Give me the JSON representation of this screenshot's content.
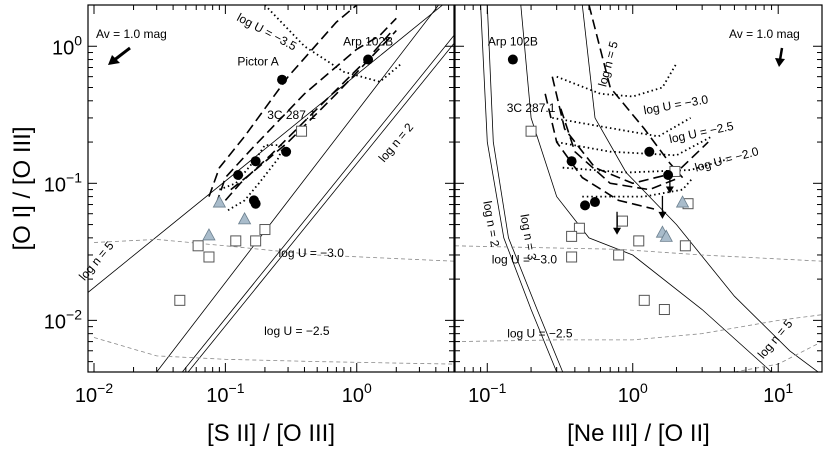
{
  "chart_data": [
    {
      "type": "scatter",
      "panel": "left",
      "xscale": "log",
      "yscale": "log",
      "xlim": [
        0.009,
        5.5
      ],
      "ylim": [
        0.0042,
        2.0
      ],
      "xlabel": "[S II] / [O III]",
      "ylabel": "[O I] / [O III]",
      "x_ticks": [
        {
          "v": 0.01,
          "b": "10",
          "e": "−2"
        },
        {
          "v": 0.1,
          "b": "10",
          "e": "−1"
        },
        {
          "v": 1,
          "b": "10",
          "e": "0"
        }
      ],
      "y_ticks": [
        {
          "v": 0.01,
          "b": "10",
          "e": "−2"
        },
        {
          "v": 0.1,
          "b": "10",
          "e": "−1"
        },
        {
          "v": 1,
          "b": "10",
          "e": "0"
        }
      ],
      "av_label": "Av = 1.0 mag",
      "filled_circles": [
        {
          "x": 1.22,
          "y": 0.8,
          "label": "Arp 102B"
        },
        {
          "x": 0.27,
          "y": 0.57,
          "label": "Pictor A"
        },
        {
          "x": 0.29,
          "y": 0.17
        },
        {
          "x": 0.17,
          "y": 0.145
        },
        {
          "x": 0.125,
          "y": 0.115
        },
        {
          "x": 0.165,
          "y": 0.075
        },
        {
          "x": 0.17,
          "y": 0.071
        }
      ],
      "triangles": [
        {
          "x": 0.09,
          "y": 0.073
        },
        {
          "x": 0.075,
          "y": 0.042
        },
        {
          "x": 0.14,
          "y": 0.055
        }
      ],
      "squares": [
        {
          "x": 0.38,
          "y": 0.24,
          "label": "3C 287.1"
        },
        {
          "x": 0.2,
          "y": 0.046
        },
        {
          "x": 0.12,
          "y": 0.038
        },
        {
          "x": 0.17,
          "y": 0.038
        },
        {
          "x": 0.062,
          "y": 0.035
        },
        {
          "x": 0.075,
          "y": 0.029
        },
        {
          "x": 0.045,
          "y": 0.014
        }
      ],
      "annotations": [
        {
          "text": "log U = −3.5",
          "x": 0.2,
          "y": 1.2,
          "rotate": 28
        },
        {
          "text": "log U = −3.0",
          "x": 0.45,
          "y": 0.029,
          "rotate": 0
        },
        {
          "text": "log U = −2.5",
          "x": 0.35,
          "y": 0.0078,
          "rotate": 0
        },
        {
          "text": "log n = 5",
          "x": 0.011,
          "y": 0.026,
          "rotate": -50
        },
        {
          "text": "log n = 2",
          "x": 2.1,
          "y": 0.19,
          "rotate": -50
        }
      ]
    },
    {
      "type": "scatter",
      "panel": "right",
      "xscale": "log",
      "yscale": "log",
      "xlim": [
        0.06,
        20
      ],
      "ylim": [
        0.0042,
        2.0
      ],
      "xlabel": "[Ne III] / [O II]",
      "x_ticks": [
        {
          "v": 0.1,
          "b": "10",
          "e": "−1"
        },
        {
          "v": 1,
          "b": "10",
          "e": "0"
        },
        {
          "v": 10,
          "b": "10",
          "e": "1"
        }
      ],
      "av_label": "Av = 1.0 mag",
      "filled_circles": [
        {
          "x": 0.15,
          "y": 0.8,
          "label": "Arp 102B"
        },
        {
          "x": 1.3,
          "y": 0.17
        },
        {
          "x": 0.38,
          "y": 0.145
        },
        {
          "x": 1.75,
          "y": 0.115
        },
        {
          "x": 0.47,
          "y": 0.069
        },
        {
          "x": 0.55,
          "y": 0.073
        }
      ],
      "upper_limits": [
        {
          "x": 0.78,
          "y": 0.049
        },
        {
          "x": 1.8,
          "y": 0.098
        },
        {
          "x": 1.6,
          "y": 0.064
        }
      ],
      "triangles": [
        {
          "x": 2.2,
          "y": 0.073
        },
        {
          "x": 1.6,
          "y": 0.044
        },
        {
          "x": 1.7,
          "y": 0.041
        }
      ],
      "squares": [
        {
          "x": 0.2,
          "y": 0.24,
          "label": "3C 287.1"
        },
        {
          "x": 1.95,
          "y": 0.122
        },
        {
          "x": 0.85,
          "y": 0.053
        },
        {
          "x": 2.4,
          "y": 0.071
        },
        {
          "x": 0.43,
          "y": 0.047
        },
        {
          "x": 0.38,
          "y": 0.041
        },
        {
          "x": 1.1,
          "y": 0.038
        },
        {
          "x": 2.3,
          "y": 0.035
        },
        {
          "x": 0.38,
          "y": 0.029
        },
        {
          "x": 0.8,
          "y": 0.03
        },
        {
          "x": 1.2,
          "y": 0.014
        },
        {
          "x": 1.65,
          "y": 0.012
        }
      ],
      "annotations": [
        {
          "text": "log n = 5",
          "x": 0.72,
          "y": 0.73,
          "rotate": -75
        },
        {
          "text": "log U = −3.0",
          "x": 2.0,
          "y": 0.35,
          "rotate": -10
        },
        {
          "text": "log U = −2.5",
          "x": 3.0,
          "y": 0.22,
          "rotate": -12
        },
        {
          "text": "log U = −2.0",
          "x": 4.5,
          "y": 0.14,
          "rotate": -15
        },
        {
          "text": "3C 287.1",
          "x": 0.2,
          "y": 0.33,
          "rotate": 0
        },
        {
          "text": "log n = 2",
          "x": 0.1,
          "y": 0.05,
          "rotate": 80
        },
        {
          "text": "log n = 3",
          "x": 0.18,
          "y": 0.04,
          "rotate": 80
        },
        {
          "text": "log U = −3.0",
          "x": 0.18,
          "y": 0.026,
          "rotate": 0
        },
        {
          "text": "log U = −2.5",
          "x": 0.23,
          "y": 0.0075,
          "rotate": 0
        },
        {
          "text": "log n = 5",
          "x": 10,
          "y": 0.007,
          "rotate": -50
        }
      ]
    }
  ]
}
